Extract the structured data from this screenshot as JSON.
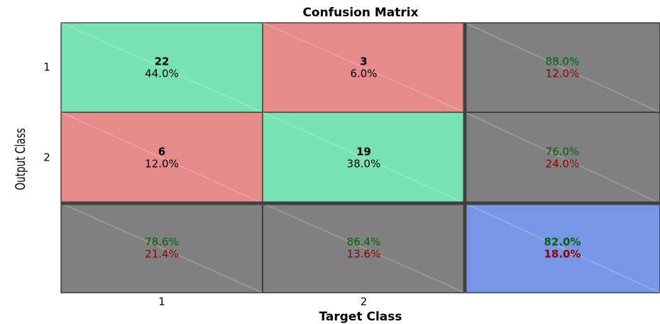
{
  "chart_data": {
    "type": "confusion",
    "title": "Confusion Matrix",
    "xlabel": "Target Class",
    "ylabel": "Output Class",
    "categories": [
      "1",
      "2"
    ],
    "counts": [
      [
        22,
        3
      ],
      [
        6,
        19
      ]
    ],
    "percents": [
      [
        44.0,
        6.0
      ],
      [
        12.0,
        38.0
      ]
    ],
    "percent_labels": [
      [
        "44.0%",
        "6.0%"
      ],
      [
        "12.0%",
        "38.0%"
      ]
    ],
    "row_correct": [
      88.0,
      76.0
    ],
    "row_correct_labels": [
      "88.0%",
      "76.0%"
    ],
    "row_error": [
      12.0,
      24.0
    ],
    "row_error_labels": [
      "12.0%",
      "24.0%"
    ],
    "col_correct": [
      78.6,
      86.4
    ],
    "col_correct_labels": [
      "78.6%",
      "86.4%"
    ],
    "col_error": [
      21.4,
      13.6
    ],
    "col_error_labels": [
      "21.4%",
      "13.6%"
    ],
    "overall_correct": 82.0,
    "overall_correct_label": "82.0%",
    "overall_error": 18.0,
    "overall_error_label": "18.0%",
    "colors": {
      "correct": "#77e3b3",
      "wrong": "#e68a8a",
      "summary": "#808080",
      "overall": "#7796e6",
      "correct_text": "#006400",
      "error_text": "#8b0000"
    }
  }
}
